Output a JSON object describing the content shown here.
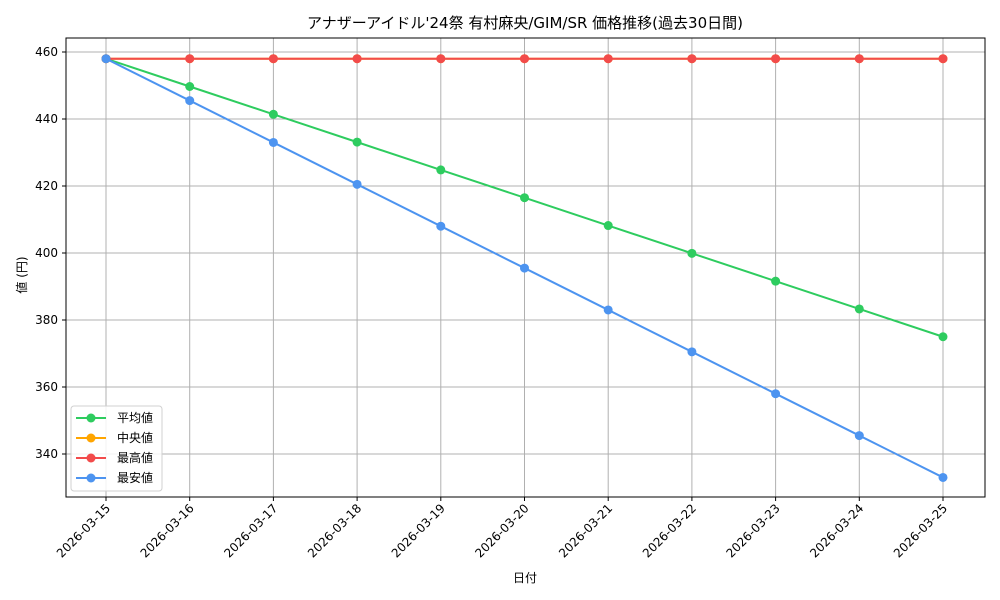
{
  "chart_data": {
    "type": "line",
    "title": "アナザーアイドル'24祭 有村麻央/GIM/SR 価格推移(過去30日間)",
    "xlabel": "日付",
    "ylabel": "値 (円)",
    "categories": [
      "2026-03-15",
      "2026-03-16",
      "2026-03-17",
      "2026-03-18",
      "2026-03-19",
      "2026-03-20",
      "2026-03-21",
      "2026-03-22",
      "2026-03-23",
      "2026-03-24",
      "2026-03-25"
    ],
    "yticks": [
      340,
      360,
      380,
      400,
      420,
      440,
      460
    ],
    "ylim": [
      327.2,
      464.2
    ],
    "grid": true,
    "legend_position": "lower left",
    "series": [
      {
        "name": "平均値",
        "color": "#2ecc5f",
        "values": [
          458,
          449.7,
          441.4,
          433.1,
          424.8,
          416.5,
          408.2,
          399.9,
          391.6,
          383.3,
          375.0
        ]
      },
      {
        "name": "中央値",
        "color": "#ffa500",
        "values": [
          458,
          458,
          458,
          458,
          458,
          458,
          458,
          458,
          458,
          458,
          458
        ]
      },
      {
        "name": "最高値",
        "color": "#f24b4b",
        "values": [
          458,
          458,
          458,
          458,
          458,
          458,
          458,
          458,
          458,
          458,
          458
        ]
      },
      {
        "name": "最安値",
        "color": "#4d94f0",
        "values": [
          458,
          445.5,
          433.0,
          420.5,
          408.0,
          395.5,
          383.0,
          370.5,
          358.0,
          345.5,
          333.0
        ]
      }
    ]
  }
}
